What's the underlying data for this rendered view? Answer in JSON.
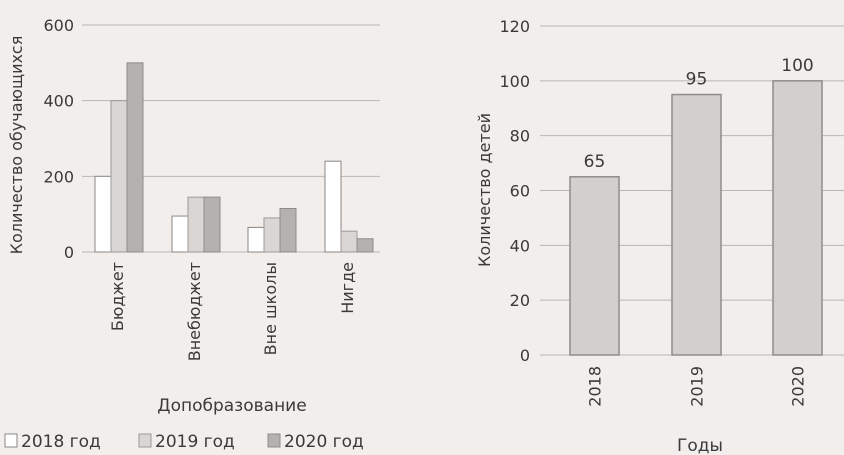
{
  "chart_data": [
    {
      "type": "bar",
      "xlabel": "Допобразование",
      "ylabel": "Количество обучающихся",
      "ylim": [
        0,
        600
      ],
      "yticks": [
        0,
        200,
        400,
        600
      ],
      "grid": true,
      "legend_position": "bottom",
      "categories": [
        "Бюджет",
        "Внебюджет",
        "Вне школы",
        "Нигде"
      ],
      "series": [
        {
          "name": "2018 год",
          "values": [
            200,
            95,
            65,
            240
          ],
          "color": "#ffffff"
        },
        {
          "name": "2019 год",
          "values": [
            400,
            145,
            90,
            55
          ],
          "color": "#d9d6d4"
        },
        {
          "name": "2020 год",
          "values": [
            500,
            145,
            115,
            35
          ],
          "color": "#b4b1af"
        }
      ]
    },
    {
      "type": "bar",
      "xlabel": "Годы",
      "ylabel": "Количество детей",
      "ylim": [
        0,
        120
      ],
      "yticks": [
        0,
        20,
        40,
        60,
        80,
        100,
        120
      ],
      "grid": true,
      "categories": [
        "2018",
        "2019",
        "2020"
      ],
      "values": [
        65,
        95,
        100
      ],
      "data_labels": [
        "65",
        "95",
        "100"
      ],
      "color": "#d2cfcd"
    }
  ]
}
